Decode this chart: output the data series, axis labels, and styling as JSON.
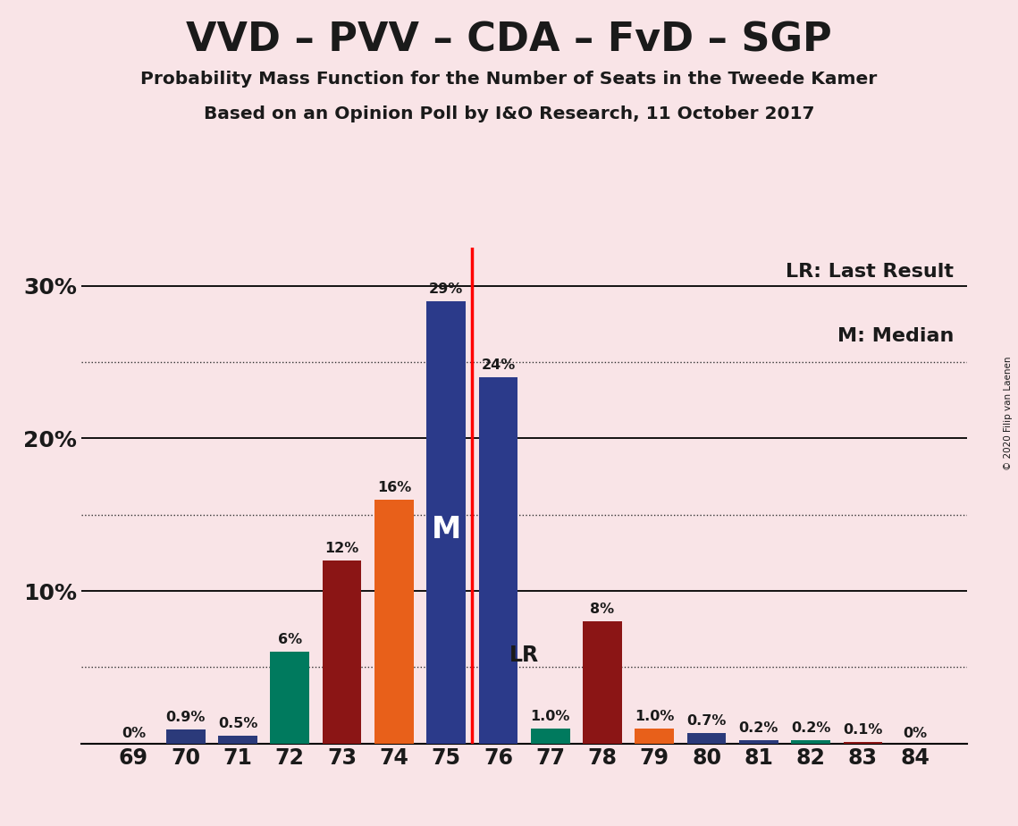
{
  "title": "VVD – PVV – CDA – FvD – SGP",
  "subtitle1": "Probability Mass Function for the Number of Seats in the Tweede Kamer",
  "subtitle2": "Based on an Opinion Poll by I&O Research, 11 October 2017",
  "copyright": "© 2020 Filip van Laenen",
  "seats": [
    69,
    70,
    71,
    72,
    73,
    74,
    75,
    76,
    77,
    78,
    79,
    80,
    81,
    82,
    83,
    84
  ],
  "values": [
    0.0,
    0.9,
    0.5,
    6.0,
    12.0,
    16.0,
    29.0,
    24.0,
    1.0,
    8.0,
    1.0,
    0.7,
    0.2,
    0.2,
    0.1,
    0.0
  ],
  "bar_colors": [
    "#2B3A7A",
    "#2B3A7A",
    "#2B3A7A",
    "#007A5E",
    "#8B1515",
    "#E8601A",
    "#2B3A8A",
    "#2B3A8A",
    "#007A5E",
    "#8B1515",
    "#E8601A",
    "#2B3A7A",
    "#2B3A7A",
    "#007A5E",
    "#8B1515",
    "#007A5E"
  ],
  "labels": [
    "0%",
    "0.9%",
    "0.5%",
    "6%",
    "12%",
    "16%",
    "29%",
    "24%",
    "1.0%",
    "8%",
    "1.0%",
    "0.7%",
    "0.2%",
    "0.2%",
    "0.1%",
    "0%"
  ],
  "median_seat": 75,
  "lr_x": 75.5,
  "background_color": "#F9E4E7",
  "major_gridlines": [
    10,
    20,
    30
  ],
  "dotted_gridlines": [
    5,
    15,
    25
  ],
  "legend_lr": "LR: Last Result",
  "legend_m": "M: Median",
  "bar_width": 0.75,
  "xlim": [
    68.0,
    85.0
  ],
  "ylim": [
    0,
    32.5
  ]
}
